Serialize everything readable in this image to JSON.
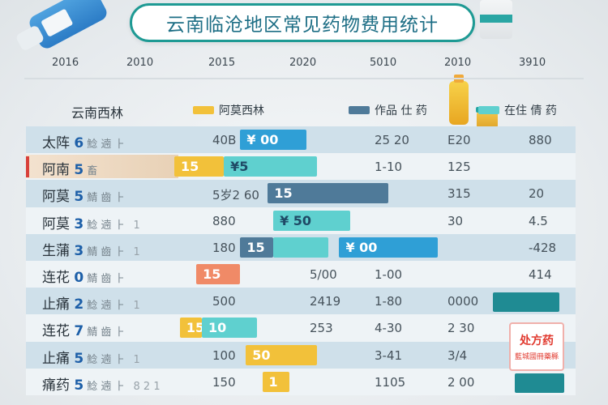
{
  "title": "云南临沧地区常见药物费用统计",
  "colors": {
    "yellow": "#f2c13a",
    "teal": "#5fd0cf",
    "blue": "#2f9fd6",
    "slate": "#4f7a99",
    "orange": "#f08a67",
    "deep_teal": "#1f8b93"
  },
  "chart_data": {
    "type": "table",
    "title": "云南临沧地区常见药物费用统计",
    "ticks": [
      "2016",
      "2010",
      "2015",
      "2020",
      "5010",
      "2010",
      "3910"
    ],
    "row_header": "云南西林",
    "legend": [
      {
        "name": "阿莫西林",
        "color": "#f2c13a"
      },
      {
        "name": "作品 仕 药",
        "color": "#4f7a99"
      },
      {
        "name": "在住 倩 药",
        "color": "#5fd0cf"
      }
    ],
    "rows": [
      {
        "label": "太阵",
        "num": "6",
        "suffix": "鯰 遖 ⺊",
        "cells": [
          "40B",
          "",
          "25 20",
          "E20",
          "880"
        ],
        "bars": [
          {
            "kind": "blue",
            "start": 0.39,
            "end": 0.51,
            "text": "¥ 00"
          }
        ]
      },
      {
        "label": "阿南",
        "num": "5",
        "suffix": "畜",
        "cells": [
          "",
          "",
          "1-10",
          "125",
          ""
        ],
        "bars": [
          {
            "kind": "yellow",
            "start": 0.27,
            "end": 0.36,
            "text": "15"
          },
          {
            "kind": "teal",
            "start": 0.36,
            "end": 0.53,
            "text": "¥5"
          }
        ]
      },
      {
        "label": "阿莫",
        "num": "5",
        "suffix": "鯖 齒 ⺊",
        "cells": [
          "5岁2 60",
          "",
          "",
          "315",
          "20"
        ],
        "bars": [
          {
            "kind": "slate",
            "start": 0.44,
            "end": 0.66,
            "text": "15"
          }
        ]
      },
      {
        "label": "阿莫",
        "num": "3",
        "suffix": "鯰 遖 ⺊",
        "digit": "1",
        "cells": [
          "880",
          "",
          "",
          "30",
          "4.5"
        ],
        "bars": [
          {
            "kind": "teal",
            "start": 0.45,
            "end": 0.59,
            "text": "¥ 50"
          }
        ]
      },
      {
        "label": "生蒲",
        "num": "3",
        "suffix": "鯖 齒 ⺊",
        "digit": "1",
        "cells": [
          "180",
          "",
          "",
          "",
          "-428"
        ],
        "bars": [
          {
            "kind": "slate",
            "start": 0.39,
            "end": 0.45,
            "text": "15"
          },
          {
            "kind": "teal",
            "start": 0.45,
            "end": 0.55,
            "text": ""
          },
          {
            "kind": "blue",
            "start": 0.57,
            "end": 0.75,
            "text": "¥ 00"
          }
        ]
      },
      {
        "label": "连花",
        "num": "0",
        "suffix": "鯖 齒 ⺊",
        "cells": [
          "",
          "5/00",
          "1-00",
          "",
          "414"
        ],
        "bars": [
          {
            "kind": "orange",
            "start": 0.31,
            "end": 0.39,
            "text": "15"
          }
        ]
      },
      {
        "label": "止痛",
        "num": "2",
        "suffix": "鯰 遖 ⺊",
        "digit": "1",
        "cells": [
          "500",
          "2419",
          "1-80",
          "0000",
          ""
        ],
        "bars": [
          {
            "kind": "deep_teal",
            "start": 0.85,
            "end": 0.97,
            "text": ""
          }
        ]
      },
      {
        "label": "连花",
        "num": "7",
        "suffix": "鯖 齒 ⺊",
        "cells": [
          "",
          "253",
          "4-30",
          "2 30",
          ""
        ],
        "bars": [
          {
            "kind": "yellow",
            "start": 0.28,
            "end": 0.32,
            "text": "15"
          },
          {
            "kind": "teal",
            "start": 0.32,
            "end": 0.42,
            "text": "10"
          }
        ]
      },
      {
        "label": "止痛",
        "num": "5",
        "suffix": "鯰 遖 ⺊",
        "digit": "1",
        "cells": [
          "100",
          "",
          "3-41",
          "3/4",
          ""
        ],
        "bars": [
          {
            "kind": "yellow",
            "start": 0.4,
            "end": 0.53,
            "text": "50"
          }
        ]
      },
      {
        "label": "痛药",
        "num": "5",
        "suffix": "鯰 遖 ⺊",
        "digit": "8 2 1",
        "cells": [
          "150",
          "",
          "1105",
          "2 00",
          ""
        ],
        "bars": [
          {
            "kind": "yellow",
            "start": 0.43,
            "end": 0.48,
            "text": "1"
          },
          {
            "kind": "deep_teal",
            "start": 0.89,
            "end": 0.98,
            "text": ""
          }
        ]
      }
    ]
  },
  "rx_card": {
    "title": "处方药",
    "sub": "藍城國冊藥縣"
  }
}
